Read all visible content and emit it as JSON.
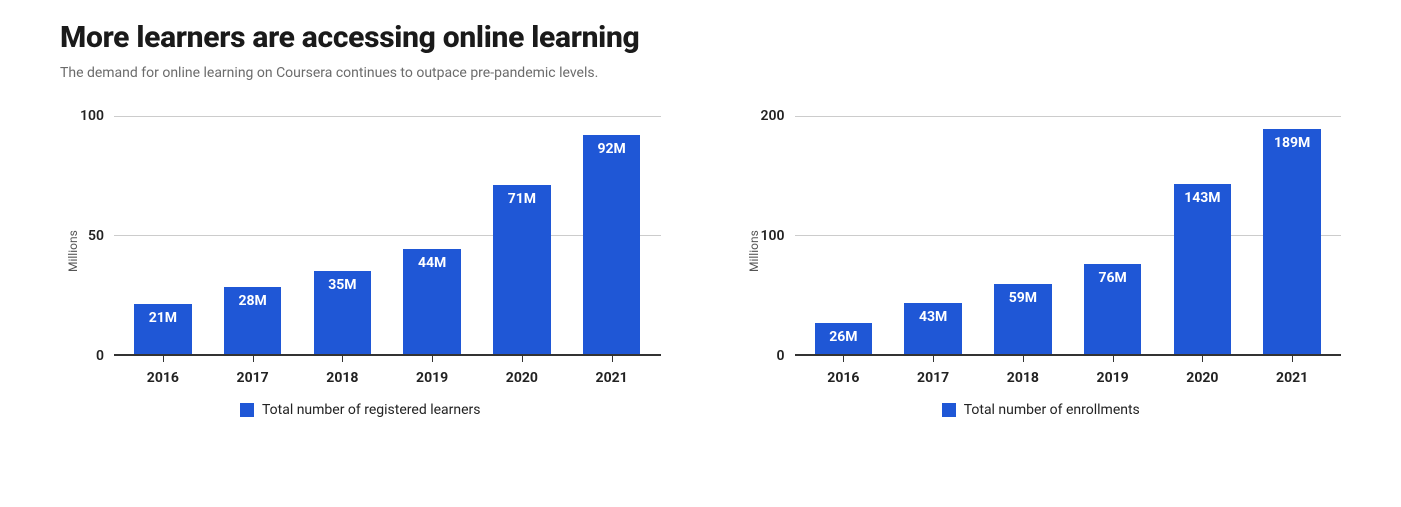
{
  "title": "More learners are accessing online learning",
  "subtitle": "The demand for online learning on Coursera continues to outpace pre-pandemic levels.",
  "y_axis_label": "Millions",
  "colors": {
    "bar": "#1f57d6",
    "grid": "#cccccc",
    "axis": "#333333",
    "text": "#222222",
    "title": "#1a1a1a",
    "subtitle": "#6b6b6b",
    "bar_label": "#ffffff",
    "background": "#ffffff"
  },
  "charts": [
    {
      "type": "bar",
      "legend": "Total number of registered learners",
      "ymax": 100,
      "ytick_step": 50,
      "yticks": [
        "100",
        "50",
        "0"
      ],
      "categories": [
        "2016",
        "2017",
        "2018",
        "2019",
        "2020",
        "2021"
      ],
      "values": [
        21,
        28,
        35,
        44,
        71,
        92
      ],
      "value_labels": [
        "21M",
        "28M",
        "35M",
        "44M",
        "71M",
        "92M"
      ],
      "bar_width_pct": 64,
      "label_fontsize": 14,
      "label_fontweight": 700
    },
    {
      "type": "bar",
      "legend": "Total number of enrollments",
      "ymax": 200,
      "ytick_step": 100,
      "yticks": [
        "200",
        "100",
        "0"
      ],
      "categories": [
        "2016",
        "2017",
        "2018",
        "2019",
        "2020",
        "2021"
      ],
      "values": [
        26,
        43,
        59,
        76,
        143,
        189
      ],
      "value_labels": [
        "26M",
        "43M",
        "59M",
        "76M",
        "143M",
        "189M"
      ],
      "bar_width_pct": 64,
      "label_fontsize": 14,
      "label_fontweight": 700
    }
  ]
}
